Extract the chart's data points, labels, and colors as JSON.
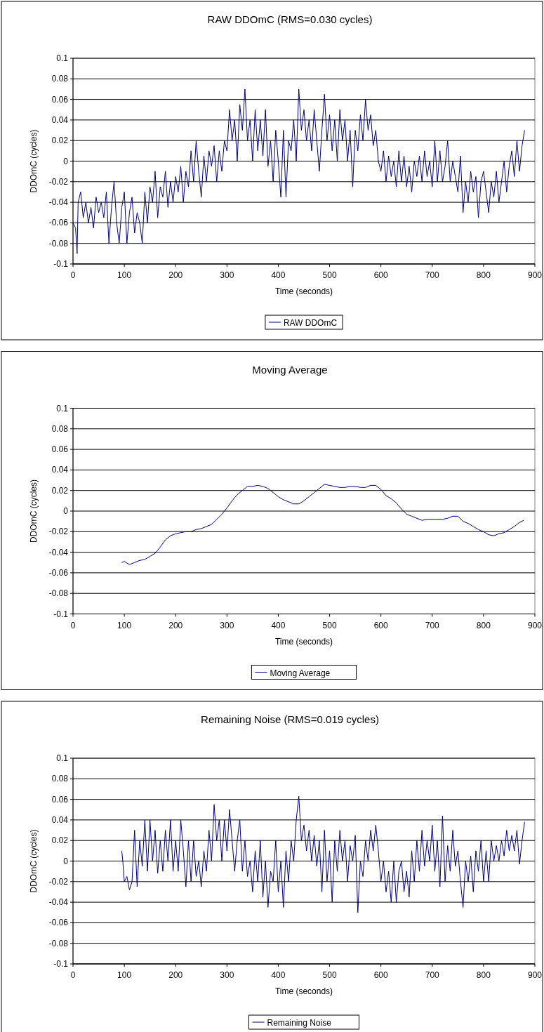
{
  "chart_data": [
    {
      "type": "line",
      "title": "RAW DDOmC (RMS=0.030 cycles)",
      "xlabel": "Time (seconds)",
      "ylabel": "DDOmC (cycles)",
      "xlim": [
        0,
        900
      ],
      "xticks": [
        0,
        100,
        200,
        300,
        400,
        500,
        600,
        700,
        800,
        900
      ],
      "ylim": [
        -0.1,
        0.1
      ],
      "yticks": [
        -0.1,
        -0.08,
        -0.06,
        -0.04,
        -0.02,
        0,
        0.02,
        0.04,
        0.06,
        0.08,
        0.1
      ],
      "grid": "y",
      "legend": "bottom",
      "marker": "none",
      "line_style": "solid",
      "series": [
        {
          "name": "RAW DDOmC",
          "color": "#000080",
          "x": [
            0,
            5,
            8,
            10,
            15,
            20,
            25,
            30,
            35,
            40,
            45,
            50,
            55,
            60,
            65,
            70,
            75,
            80,
            85,
            90,
            95,
            100,
            105,
            110,
            115,
            120,
            125,
            130,
            135,
            140,
            145,
            150,
            155,
            160,
            165,
            170,
            175,
            180,
            185,
            190,
            195,
            200,
            205,
            210,
            215,
            220,
            225,
            230,
            235,
            240,
            245,
            250,
            255,
            260,
            265,
            270,
            275,
            280,
            285,
            290,
            295,
            300,
            305,
            310,
            315,
            320,
            325,
            330,
            335,
            340,
            345,
            350,
            355,
            360,
            365,
            370,
            375,
            380,
            385,
            390,
            395,
            400,
            405,
            410,
            415,
            420,
            425,
            430,
            435,
            440,
            445,
            450,
            455,
            460,
            465,
            470,
            475,
            480,
            485,
            490,
            495,
            500,
            505,
            510,
            515,
            520,
            525,
            530,
            535,
            540,
            545,
            550,
            555,
            560,
            565,
            570,
            575,
            580,
            585,
            590,
            595,
            600,
            605,
            610,
            615,
            620,
            625,
            630,
            635,
            640,
            645,
            650,
            655,
            660,
            665,
            670,
            675,
            680,
            685,
            690,
            695,
            700,
            705,
            710,
            715,
            720,
            725,
            730,
            735,
            740,
            745,
            750,
            755,
            760,
            765,
            770,
            775,
            780,
            785,
            790,
            795,
            800,
            805,
            810,
            815,
            820,
            825,
            830,
            835,
            840,
            845,
            850,
            855,
            860,
            865,
            870,
            875,
            880
          ],
          "values": [
            -0.06,
            -0.065,
            -0.09,
            -0.04,
            -0.03,
            -0.055,
            -0.04,
            -0.06,
            -0.045,
            -0.065,
            -0.035,
            -0.05,
            -0.04,
            -0.055,
            -0.03,
            -0.08,
            -0.045,
            -0.02,
            -0.06,
            -0.08,
            -0.045,
            -0.03,
            -0.08,
            -0.05,
            -0.035,
            -0.07,
            -0.05,
            -0.06,
            -0.08,
            -0.03,
            -0.06,
            -0.025,
            -0.04,
            -0.01,
            -0.055,
            -0.025,
            -0.035,
            -0.01,
            -0.045,
            -0.02,
            -0.04,
            -0.015,
            -0.03,
            -0.005,
            -0.04,
            -0.01,
            -0.025,
            0.01,
            -0.02,
            0.02,
            -0.01,
            -0.035,
            0.005,
            -0.02,
            0.01,
            -0.005,
            0.015,
            -0.02,
            0.01,
            -0.01,
            0.02,
            0.01,
            0.05,
            0.02,
            0.04,
            0,
            0.055,
            0.03,
            0.07,
            0.02,
            0.04,
            0,
            0.05,
            0.01,
            0.04,
            0.005,
            0.05,
            -0.005,
            0.02,
            -0.02,
            0.03,
            0,
            -0.035,
            0.03,
            -0.035,
            0.02,
            0.01,
            0.04,
            0,
            0.07,
            0.03,
            0.05,
            0.02,
            0.04,
            0.01,
            0.05,
            0.02,
            -0.01,
            0.03,
            0.065,
            0.02,
            0.045,
            0.01,
            0.04,
            0,
            0.05,
            0.02,
            0.04,
            0,
            0.03,
            -0.025,
            0.03,
            0.01,
            0.045,
            0.02,
            0.06,
            0.03,
            0.045,
            0.015,
            0.03,
            0,
            -0.01,
            0.01,
            -0.02,
            0.005,
            -0.015,
            0,
            -0.025,
            0.01,
            -0.02,
            0.005,
            -0.025,
            -0.005,
            -0.03,
            0,
            -0.015,
            0.005,
            -0.02,
            0.01,
            -0.015,
            0,
            -0.025,
            0.02,
            -0.02,
            0.01,
            -0.02,
            -0.005,
            0.02,
            -0.02,
            0,
            -0.015,
            -0.03,
            0.005,
            -0.05,
            -0.02,
            -0.04,
            -0.01,
            -0.03,
            -0.015,
            -0.055,
            -0.02,
            -0.01,
            -0.03,
            -0.05,
            -0.02,
            -0.035,
            -0.01,
            -0.04,
            -0.02,
            0,
            -0.03,
            -0.005,
            0.01,
            -0.015,
            0.02,
            -0.01,
            0.015,
            0.03
          ]
        }
      ]
    },
    {
      "type": "line",
      "title": "Moving Average",
      "xlabel": "Time (seconds)",
      "ylabel": "DDOmC (cycles)",
      "xlim": [
        0,
        900
      ],
      "xticks": [
        0,
        100,
        200,
        300,
        400,
        500,
        600,
        700,
        800,
        900
      ],
      "ylim": [
        -0.1,
        0.1
      ],
      "yticks": [
        -0.1,
        -0.08,
        -0.06,
        -0.04,
        -0.02,
        0,
        0.02,
        0.04,
        0.06,
        0.08,
        0.1
      ],
      "grid": "y",
      "legend": "bottom",
      "marker": "none",
      "line_style": "solid",
      "series": [
        {
          "name": "Moving Average",
          "color": "#000080",
          "x": [
            95,
            100,
            110,
            120,
            130,
            140,
            150,
            160,
            170,
            180,
            190,
            200,
            210,
            220,
            230,
            240,
            250,
            260,
            270,
            280,
            290,
            300,
            310,
            320,
            330,
            340,
            350,
            360,
            370,
            380,
            390,
            400,
            410,
            420,
            430,
            440,
            450,
            460,
            470,
            480,
            490,
            500,
            510,
            520,
            530,
            540,
            550,
            560,
            570,
            580,
            590,
            600,
            610,
            620,
            630,
            640,
            650,
            660,
            670,
            680,
            690,
            700,
            710,
            720,
            730,
            740,
            750,
            760,
            770,
            780,
            790,
            800,
            810,
            820,
            830,
            840,
            850,
            860,
            870,
            878
          ],
          "values": [
            -0.05,
            -0.049,
            -0.052,
            -0.05,
            -0.048,
            -0.047,
            -0.044,
            -0.041,
            -0.035,
            -0.028,
            -0.024,
            -0.022,
            -0.021,
            -0.02,
            -0.02,
            -0.018,
            -0.017,
            -0.015,
            -0.013,
            -0.008,
            -0.003,
            0.003,
            0.01,
            0.016,
            0.02,
            0.024,
            0.024,
            0.025,
            0.024,
            0.022,
            0.018,
            0.014,
            0.011,
            0.009,
            0.007,
            0.007,
            0.01,
            0.014,
            0.018,
            0.022,
            0.026,
            0.025,
            0.024,
            0.023,
            0.023,
            0.024,
            0.024,
            0.023,
            0.023,
            0.025,
            0.025,
            0.021,
            0.015,
            0.012,
            0.008,
            0.002,
            -0.003,
            -0.005,
            -0.007,
            -0.009,
            -0.008,
            -0.008,
            -0.008,
            -0.008,
            -0.007,
            -0.005,
            -0.005,
            -0.01,
            -0.012,
            -0.015,
            -0.018,
            -0.02,
            -0.023,
            -0.024,
            -0.022,
            -0.021,
            -0.018,
            -0.015,
            -0.011,
            -0.009
          ]
        }
      ]
    },
    {
      "type": "line",
      "title": "Remaining Noise (RMS=0.019 cycles)",
      "xlabel": "Time (seconds)",
      "ylabel": "DDOmC (cycles)",
      "xlim": [
        0,
        900
      ],
      "xticks": [
        0,
        100,
        200,
        300,
        400,
        500,
        600,
        700,
        800,
        900
      ],
      "ylim": [
        -0.1,
        0.1
      ],
      "yticks": [
        -0.1,
        -0.08,
        -0.06,
        -0.04,
        -0.02,
        0,
        0.02,
        0.04,
        0.06,
        0.08,
        0.1
      ],
      "grid": "y",
      "legend": "bottom",
      "marker": "none",
      "line_style": "solid",
      "series": [
        {
          "name": "Remaining Noise",
          "color": "#000080",
          "x": [
            95,
            97,
            100,
            105,
            110,
            115,
            120,
            125,
            130,
            135,
            140,
            145,
            150,
            155,
            160,
            165,
            170,
            175,
            180,
            185,
            190,
            195,
            200,
            205,
            210,
            215,
            220,
            225,
            230,
            235,
            240,
            245,
            250,
            255,
            260,
            265,
            270,
            275,
            280,
            285,
            290,
            295,
            300,
            305,
            310,
            315,
            320,
            325,
            330,
            335,
            340,
            345,
            350,
            355,
            360,
            365,
            370,
            375,
            380,
            385,
            390,
            395,
            400,
            405,
            410,
            415,
            420,
            425,
            430,
            435,
            440,
            445,
            450,
            455,
            460,
            465,
            470,
            475,
            480,
            485,
            490,
            495,
            500,
            505,
            510,
            515,
            520,
            525,
            530,
            535,
            540,
            545,
            550,
            555,
            560,
            565,
            570,
            575,
            580,
            585,
            590,
            595,
            600,
            605,
            610,
            615,
            620,
            625,
            630,
            635,
            640,
            645,
            650,
            655,
            660,
            665,
            670,
            675,
            680,
            685,
            690,
            695,
            700,
            705,
            710,
            715,
            720,
            725,
            730,
            735,
            740,
            745,
            750,
            755,
            760,
            765,
            770,
            775,
            780,
            785,
            790,
            795,
            800,
            805,
            810,
            815,
            820,
            825,
            830,
            835,
            840,
            845,
            850,
            855,
            860,
            865,
            870,
            875,
            880
          ],
          "values": [
            0.01,
            0,
            -0.02,
            -0.015,
            -0.028,
            -0.02,
            0.03,
            -0.025,
            0.02,
            -0.005,
            0.04,
            -0.01,
            0.04,
            0,
            0.03,
            -0.012,
            0.02,
            -0.01,
            0.03,
            0,
            0.04,
            -0.01,
            0.02,
            -0.01,
            0.04,
            0.01,
            -0.025,
            0.02,
            -0.02,
            0.02,
            -0.015,
            0,
            -0.025,
            0.01,
            -0.01,
            0.03,
            0,
            0.055,
            0.02,
            0.04,
            0,
            0.04,
            0.01,
            0.05,
            0.02,
            -0.01,
            0.02,
            0.04,
            -0.01,
            0.02,
            -0.015,
            0,
            -0.03,
            0.01,
            -0.02,
            0.02,
            -0.035,
            0,
            -0.045,
            -0.01,
            -0.02,
            0.02,
            -0.03,
            0,
            -0.045,
            0.01,
            -0.02,
            0.02,
            0,
            0.04,
            0.063,
            0.02,
            0.035,
            0.01,
            0.03,
            0,
            0.025,
            -0.005,
            0.02,
            -0.03,
            0.03,
            -0.02,
            0.01,
            -0.04,
            0.02,
            -0.01,
            0.03,
            0,
            0.02,
            -0.02,
            0.015,
            0,
            0.025,
            -0.05,
            0,
            -0.015,
            0.02,
            0,
            0.03,
            0.01,
            0.035,
            0.01,
            -0.02,
            0,
            -0.03,
            -0.01,
            -0.04,
            0,
            -0.04,
            -0.01,
            0,
            -0.03,
            -0.01,
            -0.035,
            0.01,
            -0.02,
            0.02,
            -0.01,
            0.03,
            -0.005,
            0.02,
            0,
            0.035,
            -0.01,
            0.02,
            -0.025,
            0.044,
            -0.02,
            0.015,
            -0.01,
            0.03,
            -0.005,
            0.01,
            -0.02,
            -0.045,
            0,
            -0.02,
            0.005,
            -0.03,
            0.01,
            -0.01,
            0.02,
            -0.02,
            0.01,
            -0.02,
            0.02,
            0,
            0.015,
            0,
            0.02,
            0.005,
            0.03,
            0.01,
            0.025,
            0.01,
            0.03,
            -0.003,
            0.02,
            0.038
          ]
        }
      ]
    }
  ]
}
